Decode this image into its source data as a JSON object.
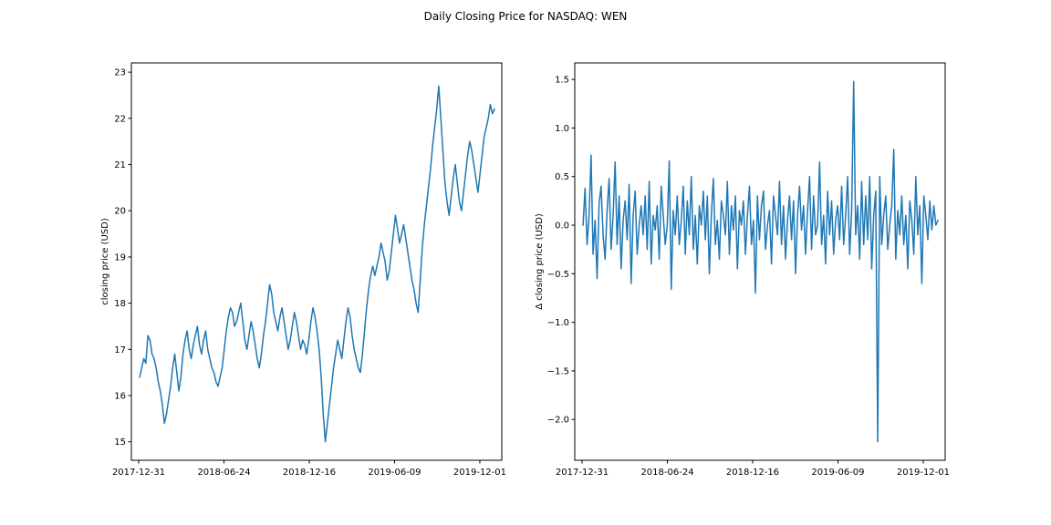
{
  "figure": {
    "title": "Daily Closing Price for NASDAQ: WEN"
  },
  "chart_data": [
    {
      "type": "line",
      "title": "",
      "xlabel": "",
      "ylabel": "closing price (USD)",
      "x_start": "2018-01-02",
      "x_end": "2019-12-31",
      "xlim": [
        "2017-12-16",
        "2020-01-15"
      ],
      "ylim": [
        14.6,
        23.2
      ],
      "xticks": [
        "2017-12-31",
        "2018-06-24",
        "2018-12-16",
        "2019-06-09",
        "2019-12-01"
      ],
      "yticks": [
        15,
        16,
        17,
        18,
        19,
        20,
        21,
        22,
        23
      ],
      "ytick_labels": [
        "15",
        "16",
        "17",
        "18",
        "19",
        "20",
        "21",
        "22",
        "23"
      ],
      "grid": false,
      "line_color": "#1f77b4",
      "series": [
        {
          "values": [
            16.4,
            16.6,
            16.8,
            16.7,
            17.3,
            17.2,
            16.9,
            16.8,
            16.6,
            16.3,
            16.1,
            15.8,
            15.4,
            15.6,
            15.9,
            16.2,
            16.6,
            16.9,
            16.5,
            16.1,
            16.4,
            16.9,
            17.2,
            17.4,
            17.0,
            16.8,
            17.1,
            17.3,
            17.5,
            17.1,
            16.9,
            17.2,
            17.4,
            17.0,
            16.8,
            16.6,
            16.5,
            16.3,
            16.2,
            16.4,
            16.6,
            17.0,
            17.4,
            17.7,
            17.9,
            17.8,
            17.5,
            17.6,
            17.8,
            18.0,
            17.6,
            17.2,
            17.0,
            17.3,
            17.6,
            17.4,
            17.1,
            16.8,
            16.6,
            16.9,
            17.3,
            17.6,
            18.0,
            18.4,
            18.2,
            17.8,
            17.6,
            17.4,
            17.7,
            17.9,
            17.6,
            17.3,
            17.0,
            17.2,
            17.5,
            17.8,
            17.6,
            17.3,
            17.0,
            17.2,
            17.1,
            16.9,
            17.2,
            17.6,
            17.9,
            17.7,
            17.4,
            17.0,
            16.4,
            15.6,
            15.0,
            15.4,
            15.8,
            16.2,
            16.6,
            16.9,
            17.2,
            17.0,
            16.8,
            17.2,
            17.6,
            17.9,
            17.7,
            17.3,
            17.0,
            16.8,
            16.6,
            16.5,
            16.9,
            17.4,
            17.9,
            18.3,
            18.6,
            18.8,
            18.6,
            18.8,
            19.0,
            19.3,
            19.1,
            18.9,
            18.5,
            18.7,
            19.1,
            19.5,
            19.9,
            19.6,
            19.3,
            19.5,
            19.7,
            19.4,
            19.1,
            18.8,
            18.5,
            18.3,
            18.0,
            17.8,
            18.5,
            19.2,
            19.7,
            20.1,
            20.5,
            20.9,
            21.4,
            21.8,
            22.2,
            22.7,
            22.0,
            21.3,
            20.6,
            20.2,
            19.9,
            20.3,
            20.7,
            21.0,
            20.6,
            20.2,
            20.0,
            20.4,
            20.8,
            21.2,
            21.5,
            21.3,
            21.0,
            20.7,
            20.4,
            20.8,
            21.2,
            21.6,
            21.8,
            22.0,
            22.3,
            22.1,
            22.2
          ]
        }
      ]
    },
    {
      "type": "line",
      "title": "",
      "xlabel": "",
      "ylabel": "Δ closing price (USD)",
      "x_start": "2018-01-02",
      "x_end": "2019-12-31",
      "xlim": [
        "2017-12-16",
        "2020-01-15"
      ],
      "ylim": [
        -2.42,
        1.67
      ],
      "xticks": [
        "2017-12-31",
        "2018-06-24",
        "2018-12-16",
        "2019-06-09",
        "2019-12-01"
      ],
      "yticks": [
        -2.0,
        -1.5,
        -1.0,
        -0.5,
        0.0,
        0.5,
        1.0,
        1.5
      ],
      "ytick_labels": [
        "−2.0",
        "−1.5",
        "−1.0",
        "−0.5",
        "0.0",
        "0.5",
        "1.0",
        "1.5"
      ],
      "grid": false,
      "line_color": "#1f77b4",
      "series": [
        {
          "values": [
            0.0,
            0.38,
            -0.2,
            0.1,
            0.72,
            -0.3,
            0.05,
            -0.55,
            0.22,
            0.4,
            -0.1,
            -0.35,
            0.15,
            0.48,
            -0.25,
            0.1,
            0.65,
            -0.2,
            0.3,
            -0.45,
            0.05,
            0.25,
            -0.15,
            0.42,
            -0.6,
            0.1,
            0.35,
            -0.3,
            0.0,
            0.2,
            -0.1,
            0.3,
            -0.25,
            0.45,
            -0.4,
            0.1,
            -0.05,
            0.2,
            -0.35,
            0.4,
            0.1,
            -0.2,
            0.0,
            0.66,
            -0.66,
            0.15,
            -0.1,
            0.3,
            -0.2,
            0.05,
            0.4,
            -0.3,
            0.25,
            -0.1,
            0.5,
            -0.25,
            0.1,
            -0.4,
            0.2,
            0.0,
            0.35,
            -0.15,
            0.3,
            -0.5,
            0.1,
            0.48,
            -0.2,
            0.05,
            -0.35,
            0.25,
            0.1,
            -0.1,
            0.45,
            -0.3,
            0.2,
            -0.05,
            0.3,
            -0.45,
            0.15,
            0.0,
            0.25,
            -0.3,
            0.1,
            0.4,
            -0.2,
            0.05,
            -0.7,
            0.3,
            -0.15,
            0.2,
            0.35,
            -0.25,
            0.0,
            0.15,
            -0.4,
            0.3,
            0.1,
            -0.1,
            0.45,
            -0.2,
            0.2,
            -0.35,
            0.05,
            0.3,
            -0.15,
            0.25,
            -0.5,
            0.1,
            0.4,
            -0.05,
            0.2,
            -0.3,
            0.15,
            0.5,
            -0.25,
            0.3,
            -0.1,
            0.0,
            0.65,
            -0.2,
            0.1,
            -0.4,
            0.35,
            -0.1,
            0.25,
            -0.3,
            0.05,
            0.2,
            -0.15,
            0.4,
            -0.2,
            0.1,
            0.5,
            -0.3,
            0.15,
            1.48,
            -0.1,
            0.2,
            -0.35,
            0.45,
            -0.2,
            0.3,
            -0.15,
            0.5,
            -0.45,
            0.1,
            0.35,
            -2.23,
            0.5,
            -0.2,
            0.1,
            0.3,
            -0.25,
            0.0,
            0.2,
            0.78,
            -0.35,
            0.15,
            -0.1,
            0.3,
            -0.2,
            0.1,
            -0.45,
            0.25,
            0.05,
            -0.3,
            0.5,
            -0.1,
            0.2,
            -0.6,
            0.3,
            0.1,
            -0.15,
            0.25,
            -0.05,
            0.2,
            0.0,
            0.05
          ]
        }
      ]
    }
  ]
}
